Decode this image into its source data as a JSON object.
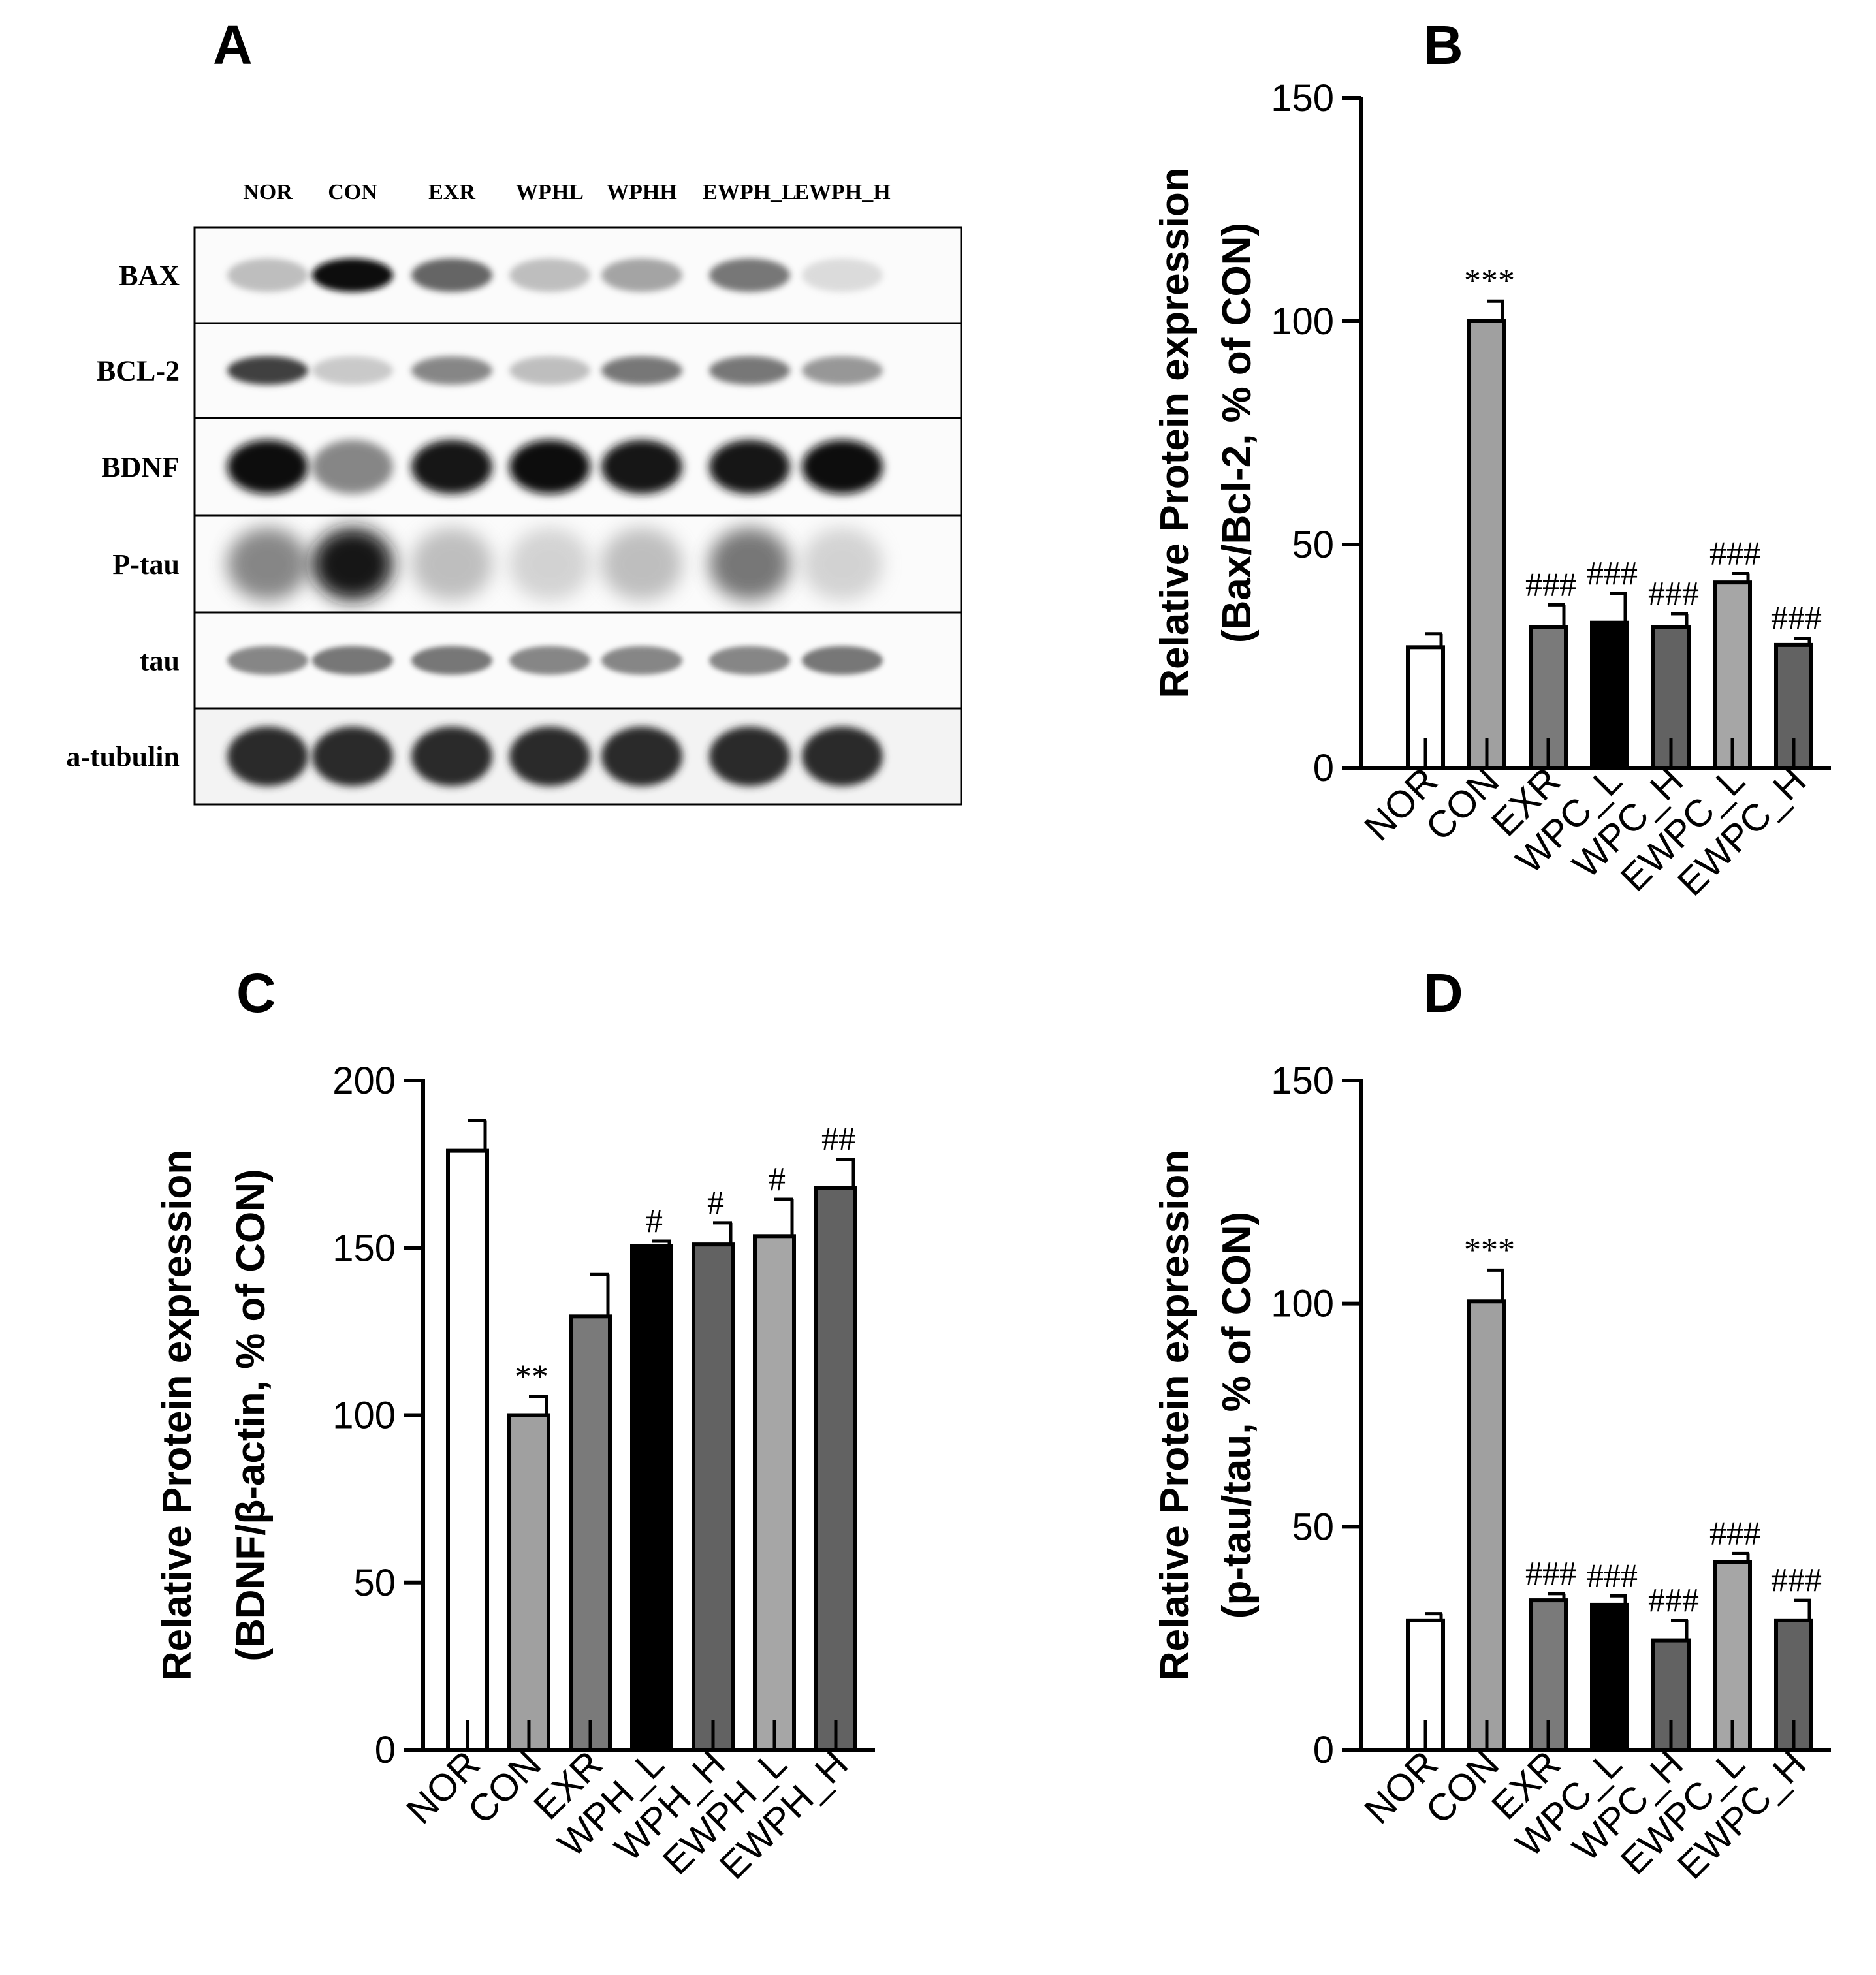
{
  "panel_a": {
    "letter": "A",
    "lanes": [
      "NOR",
      "CON",
      "EXR",
      "WPHL",
      "WPHH",
      "EWPH_L",
      "EWPH_H"
    ],
    "rows": [
      {
        "label": "BAX",
        "intensity": [
          0.35,
          1.0,
          0.65,
          0.35,
          0.45,
          0.6,
          0.2
        ],
        "thickness": 0.35,
        "blur": 5
      },
      {
        "label": "BCL-2",
        "intensity": [
          0.75,
          0.3,
          0.55,
          0.35,
          0.6,
          0.6,
          0.5
        ],
        "thickness": 0.3,
        "blur": 5
      },
      {
        "label": "BDNF",
        "intensity": [
          1.0,
          0.55,
          0.95,
          1.0,
          0.95,
          0.95,
          1.0
        ],
        "thickness": 0.55,
        "blur": 7
      },
      {
        "label": "P-tau",
        "intensity": [
          0.55,
          0.95,
          0.35,
          0.25,
          0.35,
          0.6,
          0.25
        ],
        "thickness": 0.75,
        "blur": 14
      },
      {
        "label": "tau",
        "intensity": [
          0.55,
          0.6,
          0.6,
          0.55,
          0.55,
          0.55,
          0.6
        ],
        "thickness": 0.3,
        "blur": 4
      },
      {
        "label": "a-tubulin",
        "intensity": [
          0.85,
          0.85,
          0.85,
          0.85,
          0.85,
          0.85,
          0.85
        ],
        "thickness": 0.62,
        "blur": 6
      }
    ]
  },
  "chart_data": [
    {
      "panel": "B",
      "type": "bar",
      "categories": [
        "NOR",
        "CON",
        "EXR",
        "WPC_L",
        "WPC_H",
        "EWPC_L",
        "EWPC_H"
      ],
      "values": [
        27,
        100,
        31.5,
        32.5,
        31.5,
        41.5,
        27.5
      ],
      "errors": [
        3,
        4.5,
        5,
        6.5,
        3,
        2,
        1.5
      ],
      "annotations": [
        "",
        "***",
        "###",
        "###",
        "###",
        "###",
        "###"
      ],
      "colors": [
        "#ffffff",
        "#a0a0a0",
        "#7a7a7a",
        "#000000",
        "#626262",
        "#a6a6a6",
        "#626262"
      ],
      "ylabel_line1": "Relative Protein expression",
      "ylabel_line2": "(Bax/Bcl-2, % of CON)",
      "ylim": [
        0,
        150
      ],
      "yticks": [
        0,
        50,
        100,
        150
      ],
      "grid": false
    },
    {
      "panel": "C",
      "type": "bar",
      "categories": [
        "NOR",
        "CON",
        "EXR",
        "WPH_L",
        "WPH_H",
        "EWPH_L",
        "EWPH_H"
      ],
      "values": [
        179,
        100,
        129.5,
        150.5,
        151,
        153.5,
        168
      ],
      "errors": [
        9,
        5.5,
        12.5,
        1.5,
        6.5,
        11,
        8.5
      ],
      "annotations": [
        "",
        "**",
        "",
        "#",
        "#",
        "#",
        "##"
      ],
      "colors": [
        "#ffffff",
        "#a0a0a0",
        "#7a7a7a",
        "#000000",
        "#626262",
        "#a6a6a6",
        "#626262"
      ],
      "ylabel_line1": "Relative Protein expression",
      "ylabel_line2": "(BDNF/β-actin, % of CON)",
      "ylim": [
        0,
        200
      ],
      "yticks": [
        0,
        50,
        100,
        150,
        200
      ],
      "grid": false
    },
    {
      "panel": "D",
      "type": "bar",
      "categories": [
        "NOR",
        "CON",
        "EXR",
        "WPC_L",
        "WPC_H",
        "EWPC_L",
        "EWPC_H"
      ],
      "values": [
        29,
        100.5,
        33.5,
        32.5,
        24.5,
        42,
        29
      ],
      "errors": [
        1.5,
        7,
        1.5,
        2,
        4.5,
        2,
        4.5
      ],
      "annotations": [
        "",
        "***",
        "###",
        "###",
        "###",
        "###",
        "###"
      ],
      "colors": [
        "#ffffff",
        "#a0a0a0",
        "#7a7a7a",
        "#000000",
        "#626262",
        "#a6a6a6",
        "#626262"
      ],
      "ylabel_line1": "Relative Protein expression",
      "ylabel_line2": "(p-tau/tau, % of CON)",
      "ylim": [
        0,
        150
      ],
      "yticks": [
        0,
        50,
        100,
        150
      ],
      "grid": false
    }
  ]
}
